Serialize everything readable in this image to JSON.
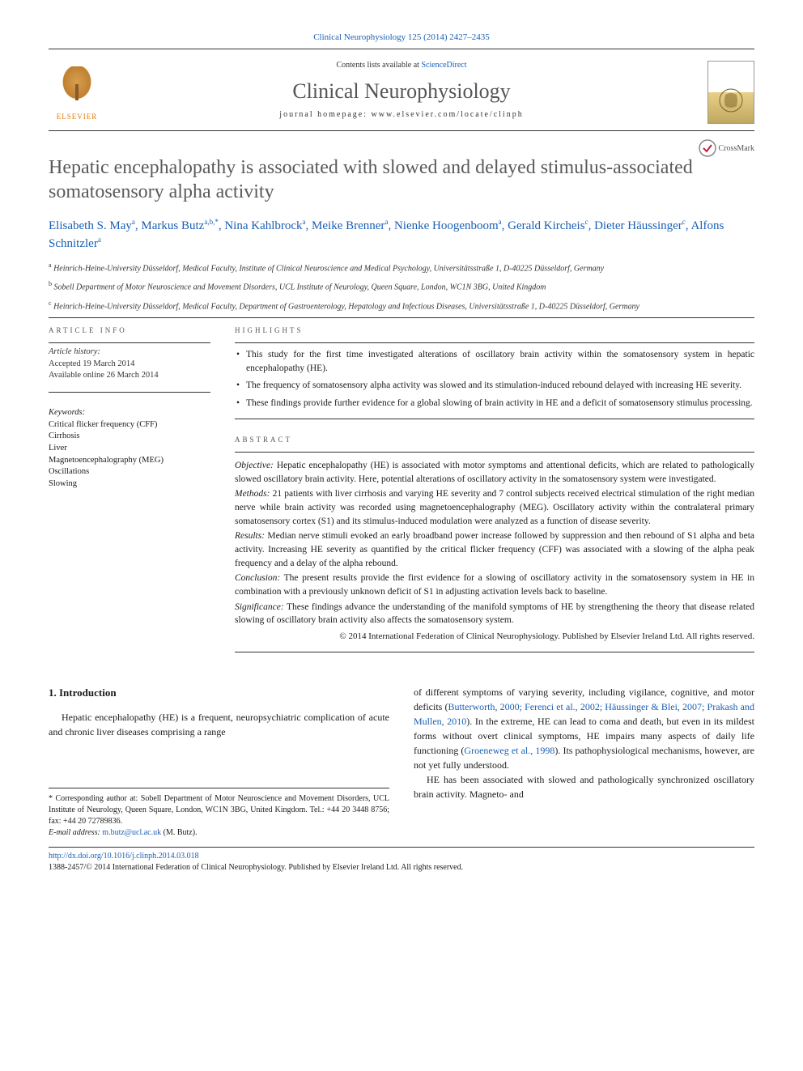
{
  "citation": {
    "journal_link": "Clinical Neurophysiology 125 (2014) 2427–2435"
  },
  "header": {
    "contents_prefix": "Contents lists available at ",
    "contents_link": "ScienceDirect",
    "journal_name": "Clinical Neurophysiology",
    "homepage_label": "journal homepage: www.elsevier.com/locate/clinph",
    "publisher_label": "ELSEVIER"
  },
  "crossmark_label": "CrossMark",
  "title": "Hepatic encephalopathy is associated with slowed and delayed stimulus-associated somatosensory alpha activity",
  "authors_html": "Elisabeth S. May<sup>a</sup>, Markus Butz<sup>a,b,*</sup>, Nina Kahlbrock<sup>a</sup>, Meike Brenner<sup>a</sup>, Nienke Hoogenboom<sup>a</sup>, Gerald Kircheis<sup>c</sup>, Dieter Häussinger<sup>c</sup>, Alfons Schnitzler<sup>a</sup>",
  "affiliations": [
    {
      "sup": "a",
      "text": "Heinrich-Heine-University Düsseldorf, Medical Faculty, Institute of Clinical Neuroscience and Medical Psychology, Universitätsstraße 1, D-40225 Düsseldorf, Germany"
    },
    {
      "sup": "b",
      "text": "Sobell Department of Motor Neuroscience and Movement Disorders, UCL Institute of Neurology, Queen Square, London, WC1N 3BG, United Kingdom"
    },
    {
      "sup": "c",
      "text": "Heinrich-Heine-University Düsseldorf, Medical Faculty, Department of Gastroenterology, Hepatology and Infectious Diseases, Universitätsstraße 1, D-40225 Düsseldorf, Germany"
    }
  ],
  "info": {
    "section_label": "ARTICLE INFO",
    "history_label": "Article history:",
    "accepted": "Accepted 19 March 2014",
    "online": "Available online 26 March 2014",
    "keywords_label": "Keywords:",
    "keywords": [
      "Critical flicker frequency (CFF)",
      "Cirrhosis",
      "Liver",
      "Magnetoencephalography (MEG)",
      "Oscillations",
      "Slowing"
    ]
  },
  "highlights": {
    "section_label": "HIGHLIGHTS",
    "items": [
      "This study for the first time investigated alterations of oscillatory brain activity within the somatosensory system in hepatic encephalopathy (HE).",
      "The frequency of somatosensory alpha activity was slowed and its stimulation-induced rebound delayed with increasing HE severity.",
      "These findings provide further evidence for a global slowing of brain activity in HE and a deficit of somatosensory stimulus processing."
    ]
  },
  "abstract": {
    "section_label": "ABSTRACT",
    "objective_label": "Objective:",
    "objective": "Hepatic encephalopathy (HE) is associated with motor symptoms and attentional deficits, which are related to pathologically slowed oscillatory brain activity. Here, potential alterations of oscillatory activity in the somatosensory system were investigated.",
    "methods_label": "Methods:",
    "methods": "21 patients with liver cirrhosis and varying HE severity and 7 control subjects received electrical stimulation of the right median nerve while brain activity was recorded using magnetoencephalography (MEG). Oscillatory activity within the contralateral primary somatosensory cortex (S1) and its stimulus-induced modulation were analyzed as a function of disease severity.",
    "results_label": "Results:",
    "results": "Median nerve stimuli evoked an early broadband power increase followed by suppression and then rebound of S1 alpha and beta activity. Increasing HE severity as quantified by the critical flicker frequency (CFF) was associated with a slowing of the alpha peak frequency and a delay of the alpha rebound.",
    "conclusion_label": "Conclusion:",
    "conclusion": "The present results provide the first evidence for a slowing of oscillatory activity in the somatosensory system in HE in combination with a previously unknown deficit of S1 in adjusting activation levels back to baseline.",
    "significance_label": "Significance:",
    "significance": "These findings advance the understanding of the manifold symptoms of HE by strengthening the theory that disease related slowing of oscillatory brain activity also affects the somatosensory system.",
    "copyright": "© 2014 International Federation of Clinical Neurophysiology. Published by Elsevier Ireland Ltd. All rights reserved."
  },
  "intro": {
    "heading": "1. Introduction",
    "para1": "Hepatic encephalopathy (HE) is a frequent, neuropsychiatric complication of acute and chronic liver diseases comprising a range",
    "para2_pre": "of different symptoms of varying severity, including vigilance, cognitive, and motor deficits (",
    "para2_ref1": "Butterworth, 2000; Ferenci et al., 2002; Häussinger & Blei, 2007; Prakash and Mullen, 2010",
    "para2_mid": "). In the extreme, HE can lead to coma and death, but even in its mildest forms without overt clinical symptoms, HE impairs many aspects of daily life functioning (",
    "para2_ref2": "Groeneweg et al., 1998",
    "para2_post": "). Its pathophysiological mechanisms, however, are not yet fully understood.",
    "para3": "HE has been associated with slowed and pathologically synchronized oscillatory brain activity. Magneto- and"
  },
  "corresponding": {
    "label": "* Corresponding author at: Sobell Department of Motor Neuroscience and Movement Disorders, UCL Institute of Neurology, Queen Square, London, WC1N 3BG, United Kingdom. Tel.: +44 20 3448 8756; fax: +44 20 72789836.",
    "email_label": "E-mail address: ",
    "email": "m.butz@ucl.ac.uk",
    "email_suffix": " (M. Butz)."
  },
  "footer": {
    "doi": "http://dx.doi.org/10.1016/j.clinph.2014.03.018",
    "issn_line": "1388-2457/© 2014 International Federation of Clinical Neurophysiology. Published by Elsevier Ireland Ltd. All rights reserved."
  },
  "colors": {
    "link": "#1a5fb4",
    "title_gray": "#5a5a5a",
    "elsevier_orange": "#e67700"
  }
}
